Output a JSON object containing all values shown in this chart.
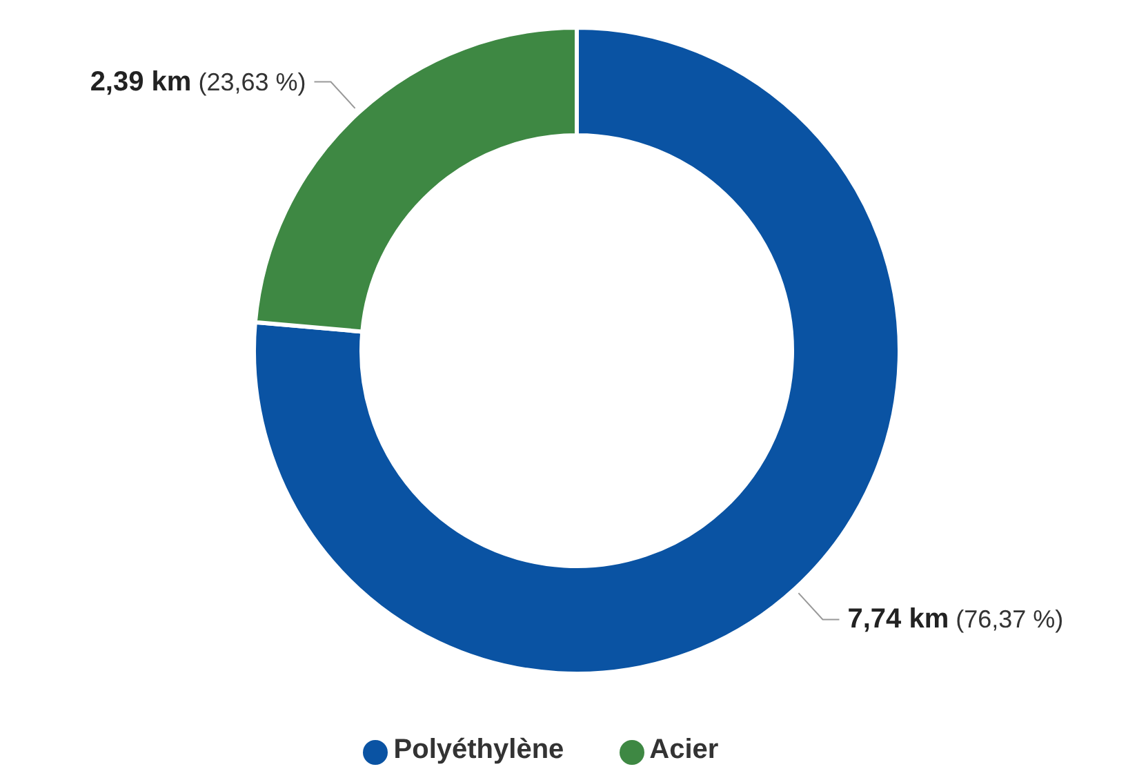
{
  "chart_data": {
    "type": "donut",
    "categories": [
      "Polyéthylène",
      "Acier"
    ],
    "values": [
      7.74,
      2.39
    ],
    "colors": [
      "#0a53a3",
      "#3e8843"
    ],
    "value_labels": [
      "7,74 km (76,37 %)",
      "2,39 km (23,63 %)"
    ],
    "legend": "bottom"
  }
}
